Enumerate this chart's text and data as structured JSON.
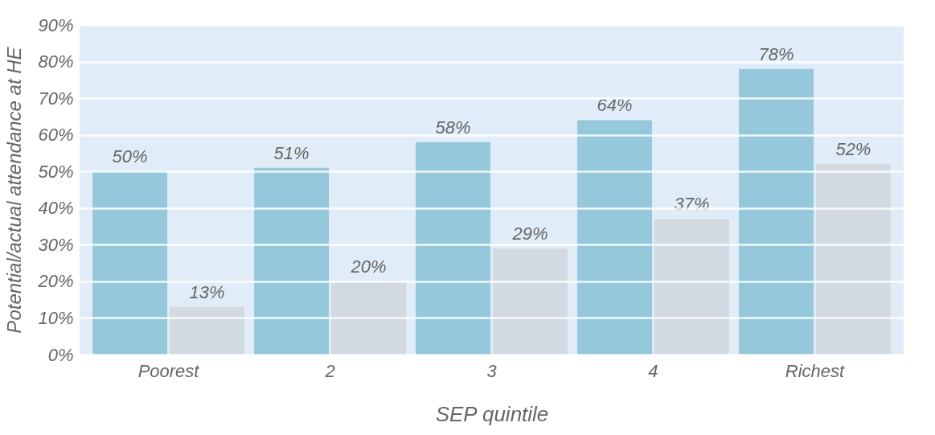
{
  "chart_data": {
    "type": "bar",
    "xlabel": "SEP quintile",
    "ylabel": "Potential/actual attendance at HE",
    "categories": [
      "Poorest",
      "2",
      "3",
      "4",
      "Richest"
    ],
    "series": [
      {
        "color": "#95c8db",
        "values": [
          50,
          51,
          58,
          64,
          78
        ],
        "value_labels": [
          "50%",
          "51%",
          "58%",
          "64%",
          "78%"
        ]
      },
      {
        "color": "#d3d9e0",
        "values": [
          13,
          20,
          29,
          37,
          52
        ],
        "value_labels": [
          "13%",
          "20%",
          "29%",
          "37%",
          "52%"
        ]
      }
    ],
    "ylim": [
      0,
      90
    ],
    "yticks": [
      {
        "value": 0,
        "label": "0%"
      },
      {
        "value": 10,
        "label": "10%"
      },
      {
        "value": 20,
        "label": "20%"
      },
      {
        "value": 30,
        "label": "30%"
      },
      {
        "value": 40,
        "label": "40%"
      },
      {
        "value": 50,
        "label": "50%"
      },
      {
        "value": 60,
        "label": "60%"
      },
      {
        "value": 70,
        "label": "70%"
      },
      {
        "value": 80,
        "label": "80%"
      },
      {
        "value": 90,
        "label": "90%"
      }
    ],
    "grid": "y",
    "legend": false
  }
}
